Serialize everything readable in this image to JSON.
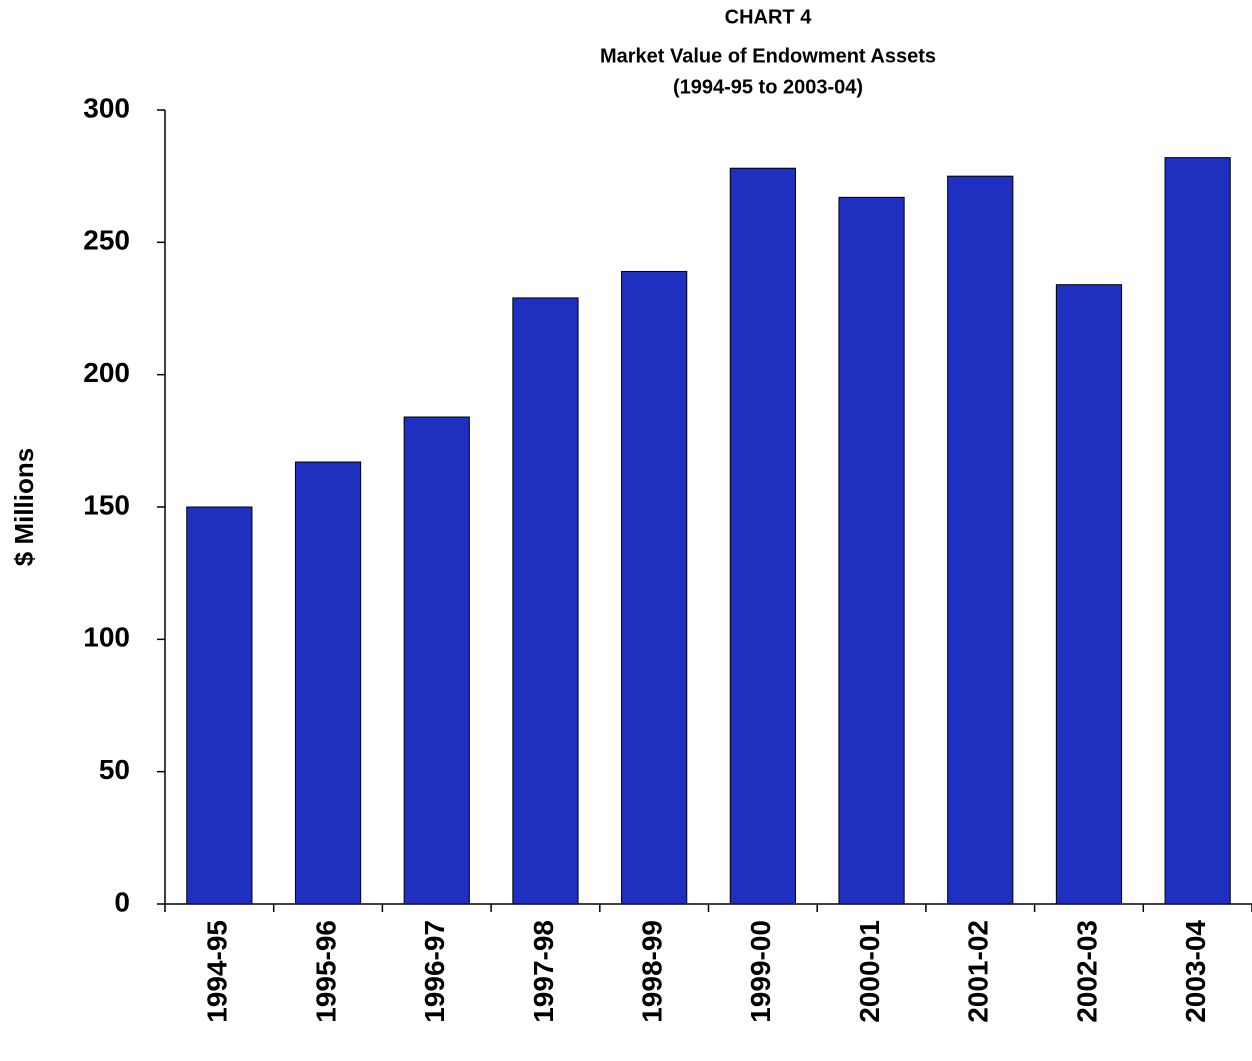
{
  "chart_data": {
    "type": "bar",
    "title": "CHART 4",
    "subtitle": "Market Value of Endowment Assets",
    "period": "(1994-95 to 2003-04)",
    "ylabel": "$ Millions",
    "categories": [
      "1994-95",
      "1995-96",
      "1996-97",
      "1997-98",
      "1998-99",
      "1999-00",
      "2000-01",
      "2001-02",
      "2002-03",
      "2003-04"
    ],
    "values": [
      150,
      167,
      184,
      229,
      239,
      278,
      267,
      275,
      234,
      282
    ],
    "color": "#1f2fbf",
    "ylim": [
      0,
      300
    ],
    "yticks": [
      0,
      50,
      100,
      150,
      200,
      250,
      300
    ],
    "grid": false
  }
}
